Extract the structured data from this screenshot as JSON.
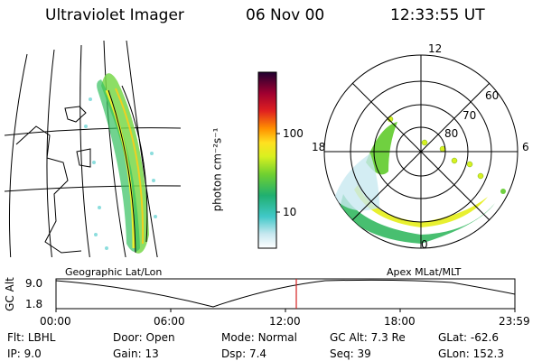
{
  "header": {
    "instrument": "Ultraviolet Imager",
    "date": "06 Nov 00",
    "time": "12:33:55 UT"
  },
  "colorbar": {
    "unit_label": "photon cm⁻²s⁻¹",
    "tick_labels": [
      "100",
      "10"
    ]
  },
  "geo_panel": {
    "label": "Geographic Lat/Lon"
  },
  "polar_panel": {
    "label": "Apex MLat/MLT",
    "mlt_labels": {
      "top": "12",
      "left": "18",
      "right": "6",
      "bottom": "0"
    },
    "lat_labels": [
      "60",
      "70",
      "80"
    ]
  },
  "altitude_plot": {
    "ylabel": "GC Alt",
    "y_ticks": [
      "9.0",
      "1.8"
    ],
    "x_ticks": [
      "00:00",
      "06:00",
      "12:00",
      "18:00",
      "23:59"
    ],
    "marker_color": "#d62020"
  },
  "info": {
    "row1": [
      {
        "label": "Flt:",
        "value": "LBHL"
      },
      {
        "label": "Door:",
        "value": "Open"
      },
      {
        "label": "Mode:",
        "value": "Normal"
      },
      {
        "label": "GC Alt:",
        "value": "7.3 Re"
      },
      {
        "label": "GLat:",
        "value": "-62.6"
      }
    ],
    "row2": [
      {
        "label": "IP:",
        "value": "9.0"
      },
      {
        "label": "Gain:",
        "value": "13"
      },
      {
        "label": "Dsp:",
        "value": "7.4"
      },
      {
        "label": "Seq:",
        "value": "39"
      },
      {
        "label": "GLon:",
        "value": "152.3"
      }
    ]
  }
}
